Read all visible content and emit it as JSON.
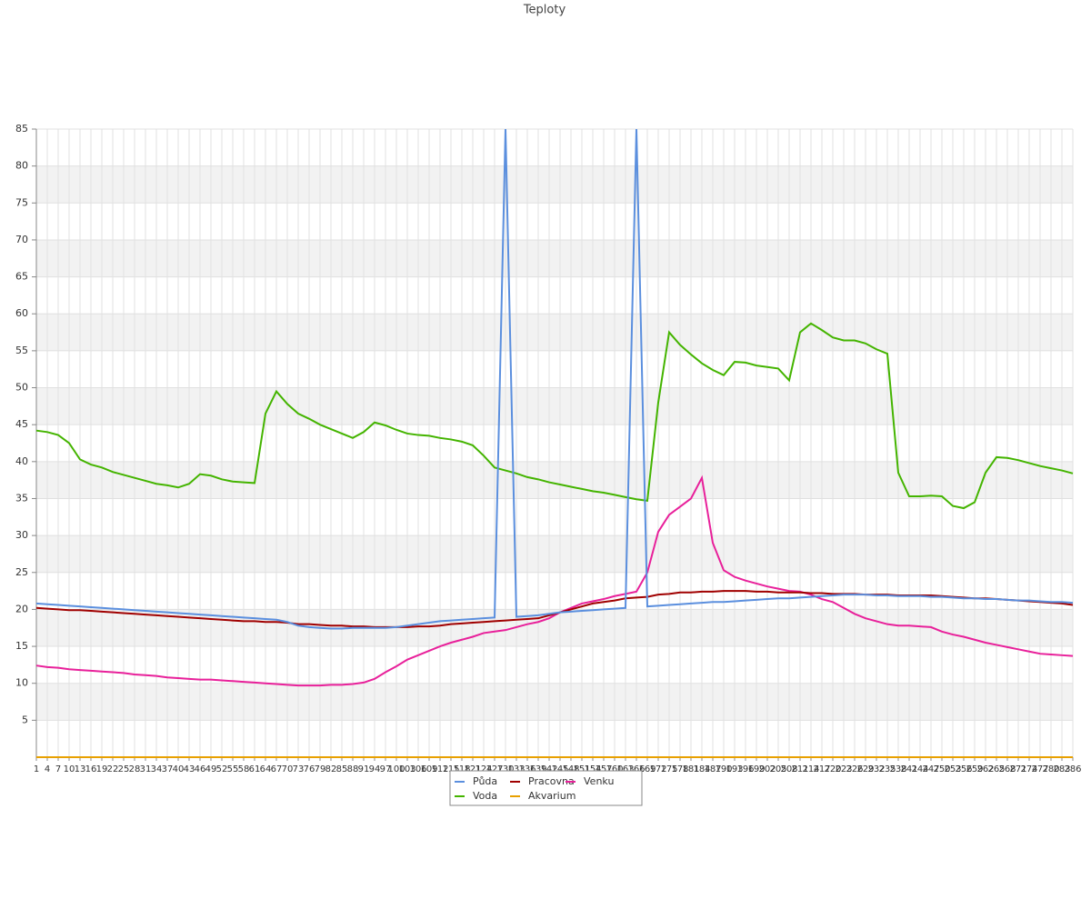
{
  "chart_data": {
    "type": "line",
    "title": "Teploty",
    "categories": [
      1,
      4,
      7,
      10,
      13,
      16,
      19,
      22,
      25,
      28,
      31,
      34,
      37,
      40,
      43,
      46,
      49,
      52,
      55,
      58,
      61,
      64,
      67,
      70,
      73,
      76,
      79,
      82,
      85,
      88,
      91,
      94,
      97,
      100,
      103,
      106,
      109,
      112,
      115,
      118,
      121,
      124,
      127,
      130,
      133,
      136,
      139,
      142,
      145,
      148,
      151,
      154,
      157,
      160,
      163,
      166,
      169,
      172,
      175,
      178,
      181,
      184,
      187,
      190,
      193,
      196,
      199,
      202,
      205,
      208,
      211,
      214,
      217,
      220,
      223,
      226,
      229,
      232,
      235,
      238,
      241,
      244,
      247,
      250,
      253,
      256,
      259,
      262,
      265,
      268,
      271,
      274,
      277,
      280,
      283,
      286
    ],
    "ylim": [
      0,
      85
    ],
    "yticks": [
      5,
      10,
      15,
      20,
      25,
      30,
      35,
      40,
      45,
      50,
      55,
      60,
      65,
      70,
      75,
      80,
      85
    ],
    "grid": true,
    "legend": "bottom",
    "series": [
      {
        "name": "Půda",
        "color": "#5b8fde",
        "values": [
          20.8,
          20.7,
          20.6,
          20.5,
          20.4,
          20.3,
          20.2,
          20.1,
          20.0,
          19.9,
          19.8,
          19.7,
          19.6,
          19.5,
          19.4,
          19.3,
          19.2,
          19.1,
          19.0,
          18.9,
          18.8,
          18.7,
          18.6,
          18.3,
          17.8,
          17.6,
          17.5,
          17.4,
          17.4,
          17.5,
          17.5,
          17.5,
          17.5,
          17.6,
          17.8,
          18.0,
          18.2,
          18.4,
          18.5,
          18.6,
          18.7,
          18.8,
          18.9,
          85,
          19.0,
          19.1,
          19.2,
          19.4,
          19.6,
          19.7,
          19.8,
          19.9,
          20.0,
          20.1,
          20.2,
          85,
          20.4,
          20.5,
          20.6,
          20.7,
          20.8,
          20.9,
          21.0,
          21.0,
          21.1,
          21.2,
          21.3,
          21.4,
          21.5,
          21.5,
          21.6,
          21.7,
          21.8,
          21.9,
          22.0,
          22.0,
          22.0,
          21.9,
          21.9,
          21.8,
          21.8,
          21.8,
          21.7,
          21.7,
          21.6,
          21.5,
          21.5,
          21.4,
          21.4,
          21.3,
          21.2,
          21.2,
          21.1,
          21.0,
          21.0,
          20.9
        ]
      },
      {
        "name": "Pracovna",
        "color": "#a00000",
        "values": [
          20.2,
          20.1,
          20.0,
          19.9,
          19.9,
          19.8,
          19.7,
          19.6,
          19.5,
          19.4,
          19.3,
          19.2,
          19.1,
          19.0,
          18.9,
          18.8,
          18.7,
          18.6,
          18.5,
          18.4,
          18.4,
          18.3,
          18.3,
          18.2,
          18.0,
          18.0,
          17.9,
          17.8,
          17.8,
          17.7,
          17.7,
          17.6,
          17.6,
          17.6,
          17.6,
          17.7,
          17.7,
          17.8,
          18.0,
          18.1,
          18.2,
          18.3,
          18.4,
          18.5,
          18.6,
          18.7,
          18.8,
          19.2,
          19.6,
          20.0,
          20.4,
          20.8,
          21.0,
          21.2,
          21.5,
          21.6,
          21.7,
          22.0,
          22.1,
          22.3,
          22.3,
          22.4,
          22.4,
          22.5,
          22.5,
          22.5,
          22.4,
          22.4,
          22.3,
          22.3,
          22.3,
          22.2,
          22.2,
          22.1,
          22.1,
          22.1,
          22.0,
          22.0,
          22.0,
          21.9,
          21.9,
          21.9,
          21.9,
          21.8,
          21.7,
          21.6,
          21.5,
          21.5,
          21.4,
          21.3,
          21.2,
          21.1,
          21.0,
          20.9,
          20.8,
          20.6
        ]
      },
      {
        "name": "Venku",
        "color": "#e8209a",
        "values": [
          12.4,
          12.2,
          12.1,
          11.9,
          11.8,
          11.7,
          11.6,
          11.5,
          11.4,
          11.2,
          11.1,
          11.0,
          10.8,
          10.7,
          10.6,
          10.5,
          10.5,
          10.4,
          10.3,
          10.2,
          10.1,
          10.0,
          9.9,
          9.8,
          9.7,
          9.7,
          9.7,
          9.8,
          9.8,
          9.9,
          10.1,
          10.6,
          11.5,
          12.3,
          13.2,
          13.8,
          14.4,
          15.0,
          15.5,
          15.9,
          16.3,
          16.8,
          17.0,
          17.2,
          17.6,
          18.0,
          18.3,
          18.8,
          19.6,
          20.2,
          20.8,
          21.1,
          21.4,
          21.8,
          22.1,
          22.4,
          25.0,
          30.5,
          32.8,
          33.9,
          35.0,
          37.8,
          29.0,
          25.3,
          24.4,
          23.9,
          23.5,
          23.1,
          22.8,
          22.5,
          22.4,
          22.0,
          21.4,
          21.0,
          20.2,
          19.4,
          18.8,
          18.4,
          18.0,
          17.8,
          17.8,
          17.7,
          17.6,
          17.0,
          16.6,
          16.3,
          15.9,
          15.5,
          15.2,
          14.9,
          14.6,
          14.3,
          14.0,
          13.9,
          13.8,
          13.7
        ]
      },
      {
        "name": "Voda",
        "color": "#44b400",
        "values": [
          44.2,
          44.0,
          43.6,
          42.5,
          40.3,
          39.6,
          39.2,
          38.6,
          38.2,
          37.8,
          37.4,
          37.0,
          36.8,
          36.5,
          37.0,
          38.3,
          38.1,
          37.6,
          37.3,
          37.2,
          37.1,
          46.5,
          49.5,
          47.8,
          46.5,
          45.8,
          45.0,
          44.4,
          43.8,
          43.2,
          44.0,
          45.3,
          44.9,
          44.3,
          43.8,
          43.6,
          43.5,
          43.2,
          43.0,
          42.7,
          42.2,
          40.8,
          39.2,
          38.8,
          38.4,
          37.9,
          37.6,
          37.2,
          36.9,
          36.6,
          36.3,
          36.0,
          35.8,
          35.5,
          35.2,
          34.9,
          34.7,
          48.0,
          57.5,
          55.8,
          54.5,
          53.3,
          52.4,
          51.7,
          53.5,
          53.4,
          53.0,
          52.8,
          52.6,
          51.0,
          57.5,
          58.7,
          57.8,
          56.8,
          56.4,
          56.4,
          56.0,
          55.2,
          54.6,
          38.5,
          35.3,
          35.3,
          35.4,
          35.3,
          34.0,
          33.7,
          34.5,
          38.5,
          40.6,
          40.5,
          40.2,
          39.8,
          39.4,
          39.1,
          38.8,
          38.4
        ]
      },
      {
        "name": "Akvarium",
        "color": "#e8a000",
        "values": [
          0,
          0,
          0,
          0,
          0,
          0,
          0,
          0,
          0,
          0,
          0,
          0,
          0,
          0,
          0,
          0,
          0,
          0,
          0,
          0,
          0,
          0,
          0,
          0,
          0,
          0,
          0,
          0,
          0,
          0,
          0,
          0,
          0,
          0,
          0,
          0,
          0,
          0,
          0,
          0,
          0,
          0,
          0,
          0,
          0,
          0,
          0,
          0,
          0,
          0,
          0,
          0,
          0,
          0,
          0,
          0,
          0,
          0,
          0,
          0,
          0,
          0,
          0,
          0,
          0,
          0,
          0,
          0,
          0,
          0,
          0,
          0,
          0,
          0,
          0,
          0,
          0,
          0,
          0,
          0,
          0,
          0,
          0,
          0,
          0,
          0,
          0,
          0,
          0,
          0,
          0,
          0,
          0,
          0,
          0,
          0
        ]
      }
    ]
  }
}
